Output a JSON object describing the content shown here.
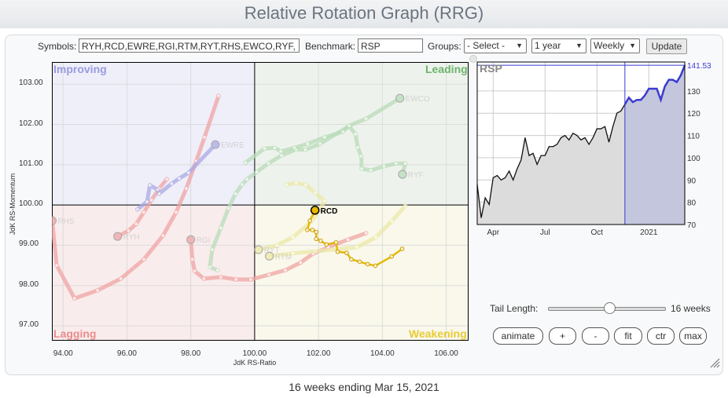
{
  "header": {
    "title": "Relative Rotation Graph (RRG)"
  },
  "controls": {
    "symbols_label": "Symbols:",
    "symbols_value": "RYH,RCD,EWRE,RGI,RTM,RYT,RHS,EWCO,RYF,",
    "benchmark_label": "Benchmark:",
    "benchmark_value": "RSP",
    "groups_label": "Groups:",
    "groups_value": "- Select -",
    "period_value": "1 year",
    "frequency_value": "Weekly",
    "update_label": "Update"
  },
  "rrg": {
    "xlabel": "JdK RS-Ratio",
    "ylabel": "JdK RS-Momentum",
    "xlim": [
      93.65,
      106.7
    ],
    "ylim": [
      96.63,
      103.55
    ],
    "x_ticks": [
      "94.00",
      "96.00",
      "98.00",
      "100.00",
      "102.00",
      "104.00",
      "106.00"
    ],
    "y_ticks": [
      "103.00",
      "102.00",
      "101.00",
      "100.00",
      "99.00",
      "98.00",
      "97.00"
    ],
    "quadrants": {
      "improving": "Improving",
      "leading": "Leading",
      "lagging": "Lagging",
      "weakening": "Weakening"
    },
    "colors": {
      "improving_bg": "#eeeff9",
      "leading_bg": "#edf3ec",
      "lagging_bg": "#f9ecec",
      "weakening_bg": "#f9f8eb",
      "improving": "#9a9ae0",
      "leading": "#6db36d",
      "lagging": "#ec8c8c",
      "weakening": "#e8cc35"
    },
    "series": [
      {
        "symbol": "RHS",
        "color": "#f0a4a4",
        "highlight": false,
        "points": [
          [
            98.87,
            102.71
          ],
          [
            98.43,
            101.68
          ],
          [
            98.17,
            101.09
          ],
          [
            97.86,
            100.41
          ],
          [
            97.54,
            99.82
          ],
          [
            97.13,
            99.24
          ],
          [
            96.53,
            98.65
          ],
          [
            95.81,
            98.17
          ],
          [
            95.08,
            97.88
          ],
          [
            94.36,
            97.68
          ],
          [
            93.8,
            98.5
          ],
          [
            93.66,
            99.61
          ]
        ]
      },
      {
        "symbol": "RYH",
        "color": "#f0a4a4",
        "highlight": false,
        "points": [
          [
            97.25,
            100.64
          ],
          [
            97.01,
            100.41
          ],
          [
            96.77,
            100.12
          ],
          [
            96.53,
            99.82
          ],
          [
            96.29,
            99.53
          ],
          [
            96.05,
            99.36
          ],
          [
            95.71,
            99.22
          ]
        ]
      },
      {
        "symbol": "RGI",
        "color": "#f0a4a4",
        "highlight": false,
        "points": [
          [
            103.49,
            99.3
          ],
          [
            102.92,
            99.14
          ],
          [
            102.31,
            98.95
          ],
          [
            101.83,
            98.79
          ],
          [
            101.44,
            98.57
          ],
          [
            100.96,
            98.38
          ],
          [
            100.45,
            98.27
          ],
          [
            99.88,
            98.15
          ],
          [
            99.42,
            98.15
          ],
          [
            98.94,
            98.21
          ],
          [
            98.41,
            98.17
          ],
          [
            98.12,
            98.36
          ],
          [
            98.05,
            98.65
          ],
          [
            98.0,
            99.14
          ]
        ]
      },
      {
        "symbol": "EWRE",
        "color": "#aaaae6",
        "highlight": false,
        "points": [
          [
            96.33,
            99.89
          ],
          [
            96.63,
            100.08
          ],
          [
            96.72,
            100.49
          ],
          [
            96.96,
            100.38
          ],
          [
            97.01,
            100.28
          ],
          [
            97.4,
            100.53
          ],
          [
            97.64,
            100.66
          ],
          [
            97.93,
            100.8
          ],
          [
            98.77,
            101.5
          ]
        ]
      },
      {
        "symbol": "RYT",
        "color": "#ece9a8",
        "highlight": false,
        "points": [
          [
            101.0,
            100.5
          ],
          [
            101.3,
            100.55
          ],
          [
            101.6,
            100.5
          ],
          [
            101.9,
            100.3
          ],
          [
            102.2,
            100.1
          ],
          [
            101.8,
            99.6
          ],
          [
            101.2,
            99.2
          ],
          [
            100.7,
            99.0
          ],
          [
            100.12,
            98.89
          ]
        ]
      },
      {
        "symbol": "RTM",
        "color": "#ece9a8",
        "highlight": false,
        "points": [
          [
            104.72,
            99.98
          ],
          [
            104.3,
            99.6
          ],
          [
            103.8,
            99.2
          ],
          [
            103.2,
            98.95
          ],
          [
            102.6,
            98.9
          ],
          [
            101.9,
            98.85
          ],
          [
            101.2,
            98.8
          ],
          [
            100.46,
            98.73
          ]
        ]
      },
      {
        "symbol": "RYF",
        "color": "#b9dcb9",
        "highlight": false,
        "points": [
          [
            98.84,
            98.38
          ],
          [
            98.6,
            98.46
          ],
          [
            98.67,
            98.89
          ],
          [
            98.94,
            99.43
          ],
          [
            99.18,
            99.92
          ],
          [
            99.4,
            100.28
          ],
          [
            99.61,
            100.51
          ],
          [
            99.76,
            100.64
          ],
          [
            100.07,
            100.82
          ],
          [
            100.43,
            101.03
          ],
          [
            100.84,
            101.23
          ],
          [
            101.3,
            101.38
          ],
          [
            101.59,
            101.37
          ],
          [
            102.05,
            101.52
          ],
          [
            102.96,
            101.96
          ],
          [
            103.16,
            101.76
          ],
          [
            103.23,
            101.43
          ],
          [
            103.34,
            101.21
          ],
          [
            103.35,
            100.9
          ],
          [
            103.64,
            100.86
          ],
          [
            104.05,
            100.96
          ],
          [
            104.43,
            101.03
          ],
          [
            104.72,
            101.03
          ],
          [
            104.63,
            100.76
          ]
        ]
      },
      {
        "symbol": "EWCO",
        "color": "#b9dcb9",
        "highlight": false,
        "points": [
          [
            99.71,
            101.05
          ],
          [
            100.31,
            101.4
          ],
          [
            100.63,
            101.42
          ],
          [
            100.82,
            101.33
          ],
          [
            101.25,
            101.42
          ],
          [
            101.66,
            101.52
          ],
          [
            102.19,
            101.68
          ],
          [
            102.76,
            101.82
          ],
          [
            102.96,
            101.97
          ],
          [
            103.49,
            102.14
          ],
          [
            104.55,
            102.65
          ]
        ]
      },
      {
        "symbol": "RCD",
        "color": "#e8b800",
        "highlight": true,
        "points": [
          [
            104.62,
            98.91
          ],
          [
            104.29,
            98.72
          ],
          [
            103.78,
            98.49
          ],
          [
            103.54,
            98.53
          ],
          [
            103.29,
            98.59
          ],
          [
            103.03,
            98.65
          ],
          [
            102.88,
            98.81
          ],
          [
            102.6,
            98.84
          ],
          [
            102.55,
            99.07
          ],
          [
            102.25,
            99.02
          ],
          [
            102.07,
            99.11
          ],
          [
            101.93,
            99.16
          ],
          [
            101.93,
            99.33
          ],
          [
            101.81,
            99.38
          ],
          [
            101.65,
            99.38
          ],
          [
            101.73,
            99.61
          ],
          [
            101.89,
            99.87
          ]
        ]
      }
    ]
  },
  "chart_data": {
    "type": "line",
    "title": "RSP",
    "last_value_label": "141.53",
    "ylim": [
      70,
      143
    ],
    "y_ticks": [
      "70",
      "80",
      "90",
      "100",
      "110",
      "120",
      "130"
    ],
    "x_ticks": [
      {
        "label": "Apr",
        "index": 4
      },
      {
        "label": "Jul",
        "index": 17
      },
      {
        "label": "Oct",
        "index": 30
      },
      {
        "label": "2021",
        "index": 43
      }
    ],
    "highlight_start_index": 37,
    "values": [
      88,
      73,
      82,
      79,
      91,
      92,
      90,
      91,
      94,
      90,
      95,
      99,
      109,
      101,
      102,
      97,
      101,
      101,
      105,
      105,
      106,
      109,
      110,
      108,
      111,
      110,
      108,
      109,
      106,
      109,
      113,
      113,
      114,
      107,
      114,
      120,
      121,
      124,
      127,
      125,
      126,
      126,
      128,
      131,
      131,
      131,
      126,
      132,
      135,
      135,
      134,
      137,
      141.53
    ]
  },
  "tail": {
    "label": "Tail Length:",
    "value_label": "16 weeks",
    "slider_fraction": 0.53
  },
  "buttons": {
    "animate": "animate",
    "plus": "+",
    "minus": "-",
    "fit": "fit",
    "ctr": "ctr",
    "max": "max"
  },
  "footer": {
    "text": "16 weeks ending Mar 15, 2021"
  }
}
